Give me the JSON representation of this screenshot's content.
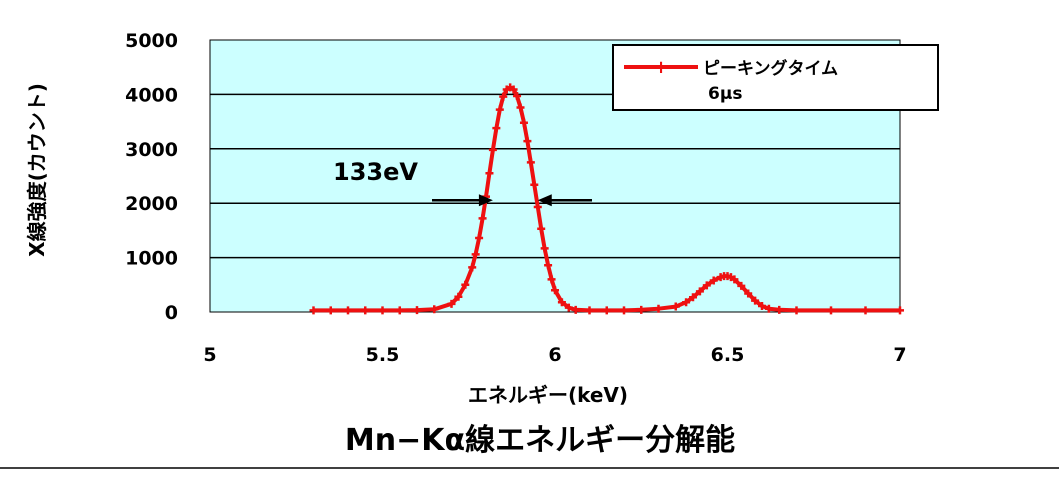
{
  "chart_data": {
    "type": "line",
    "title": "",
    "caption": "Mn−Kα線エネルギー分解能",
    "xlabel": "エネルギー(keV)",
    "ylabel": "X線強度(カウント)",
    "xlim": [
      5,
      7
    ],
    "ylim": [
      0,
      5000
    ],
    "xticks": [
      "5",
      "5.5",
      "6",
      "6.5",
      "7"
    ],
    "yticks": [
      "0",
      "1000",
      "2000",
      "3000",
      "4000",
      "5000"
    ],
    "grid": "horizontal",
    "legend": {
      "placement": "top-right",
      "line1": "ピーキングタイム",
      "line2": "6μs"
    },
    "colors": {
      "series": "#ee1111",
      "plot_background": "#ccffff",
      "gridline": "#000000"
    },
    "annotation": {
      "text": "133eV",
      "y": 2000,
      "x_left": 5.82,
      "x_right": 5.95
    },
    "series": [
      {
        "name": "ピーキングタイム",
        "x": [
          5.3,
          5.35,
          5.4,
          5.45,
          5.5,
          5.55,
          5.6,
          5.65,
          5.7,
          5.72,
          5.74,
          5.76,
          5.77,
          5.78,
          5.79,
          5.8,
          5.81,
          5.82,
          5.83,
          5.84,
          5.85,
          5.86,
          5.87,
          5.88,
          5.89,
          5.9,
          5.91,
          5.92,
          5.93,
          5.94,
          5.95,
          5.96,
          5.97,
          5.98,
          5.99,
          6.0,
          6.02,
          6.04,
          6.06,
          6.1,
          6.15,
          6.2,
          6.25,
          6.3,
          6.35,
          6.38,
          6.4,
          6.42,
          6.44,
          6.46,
          6.48,
          6.49,
          6.5,
          6.51,
          6.52,
          6.54,
          6.56,
          6.58,
          6.6,
          6.62,
          6.65,
          6.7,
          6.8,
          6.9,
          7.0
        ],
        "values": [
          30,
          30,
          30,
          30,
          30,
          30,
          35,
          50,
          150,
          280,
          500,
          820,
          1060,
          1360,
          1720,
          2120,
          2550,
          2980,
          3380,
          3720,
          3960,
          4090,
          4130,
          4090,
          3970,
          3760,
          3480,
          3140,
          2750,
          2340,
          1930,
          1530,
          1170,
          860,
          600,
          400,
          180,
          80,
          40,
          30,
          30,
          30,
          40,
          60,
          100,
          180,
          270,
          380,
          490,
          580,
          640,
          660,
          660,
          640,
          600,
          480,
          340,
          210,
          110,
          60,
          40,
          30,
          30,
          30,
          30
        ]
      }
    ]
  }
}
